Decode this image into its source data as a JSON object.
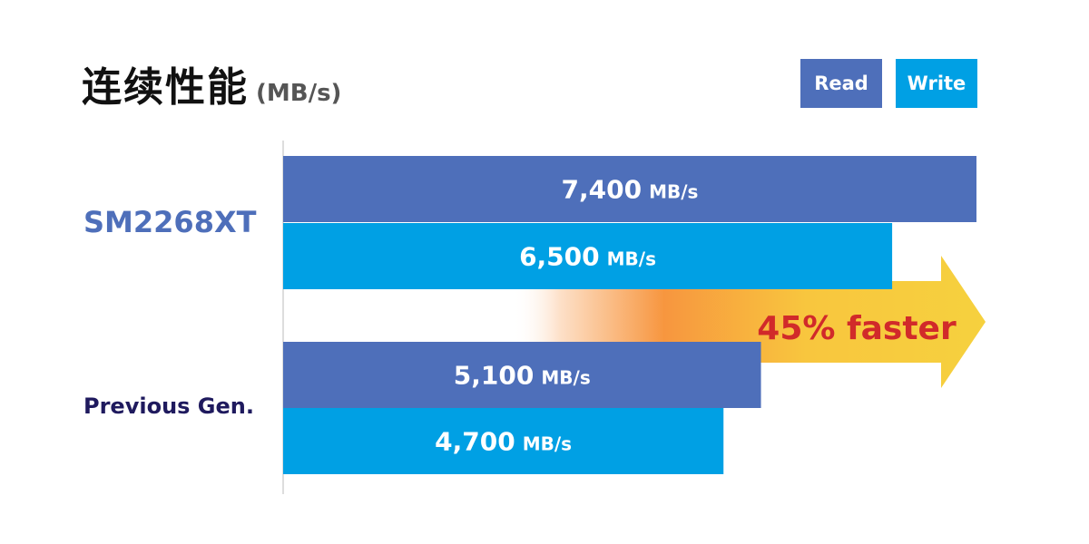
{
  "header": {
    "title": "连续性能",
    "unit": "(MB/s)"
  },
  "legend": {
    "read_label": "Read",
    "write_label": "Write"
  },
  "colors": {
    "read": "#4e6fba",
    "write": "#00a0e4",
    "label_primary": "#4e6fba",
    "label_secondary": "#1f1a5e",
    "callout_text": "#d12a2a",
    "axis": "#bbbbbb"
  },
  "callout": {
    "text": "45% faster"
  },
  "chart_data": {
    "type": "bar",
    "orientation": "horizontal",
    "title": "连续性能",
    "unit": "MB/s",
    "categories": [
      "SM2268XT",
      "Previous Gen."
    ],
    "series": [
      {
        "name": "Read",
        "values": [
          7400,
          5100
        ]
      },
      {
        "name": "Write",
        "values": [
          6500,
          4700
        ]
      }
    ],
    "value_labels": [
      [
        "7,400",
        "5,100"
      ],
      [
        "6,500",
        "4,700"
      ]
    ],
    "value_unit": "MB/s",
    "xlim": [
      0,
      7400
    ],
    "legend": "top-right",
    "grid": false,
    "annotation": "45% faster"
  }
}
